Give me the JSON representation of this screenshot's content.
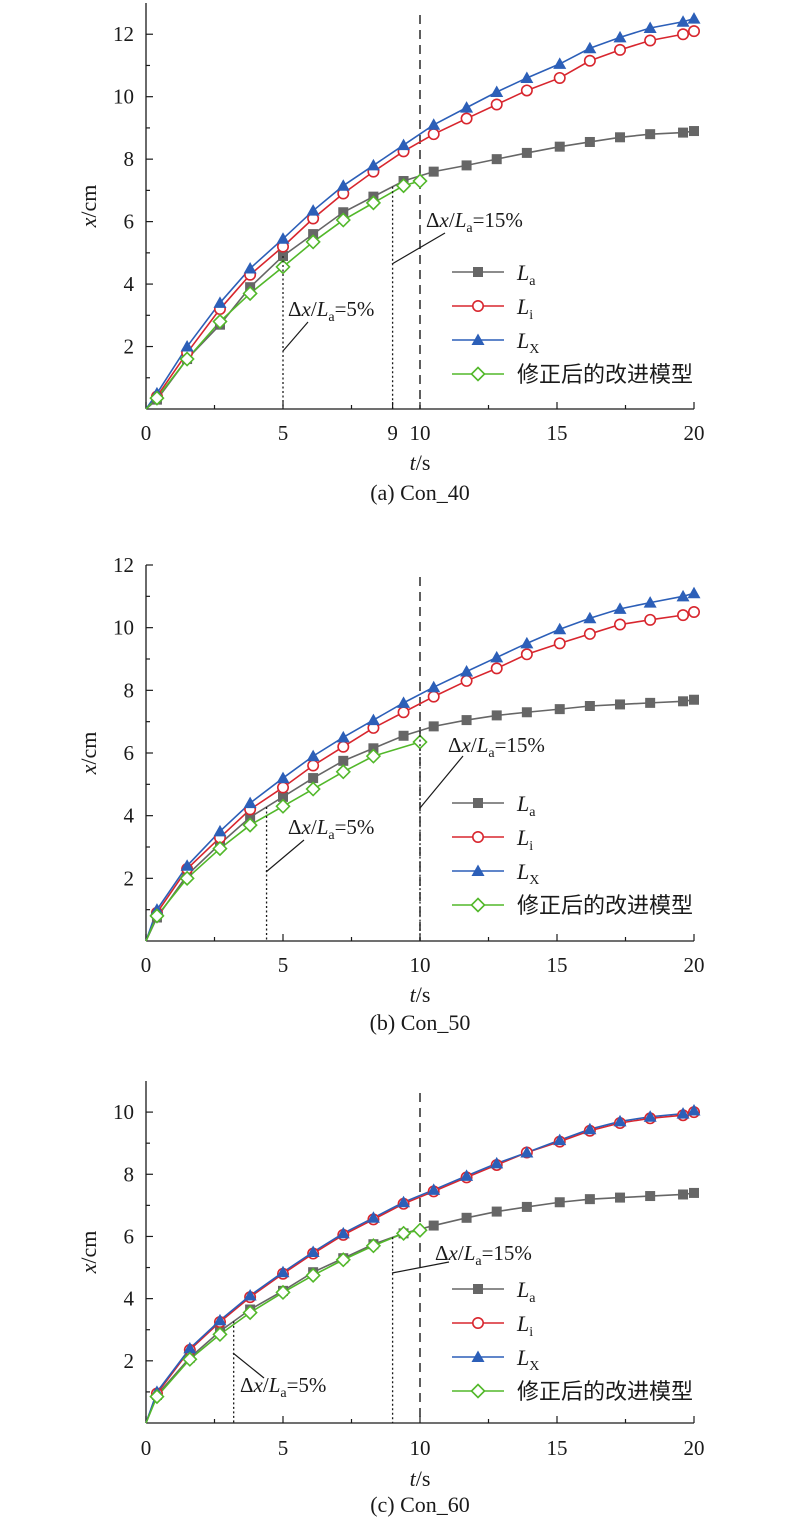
{
  "colors": {
    "La": "#666666",
    "Li": "#d8262e",
    "LX": "#2c5fb8",
    "model": "#52b82a",
    "axis": "#1a1a1a"
  },
  "legend_entries": [
    {
      "key": "La",
      "main": "L",
      "sub": "a",
      "marker": "square"
    },
    {
      "key": "Li",
      "main": "L",
      "sub": "i",
      "marker": "circle"
    },
    {
      "key": "LX",
      "main": "L",
      "sub": "X",
      "marker": "triangle"
    },
    {
      "key": "model",
      "main": "修正后的改进模型",
      "sub": "",
      "marker": "diamond"
    }
  ],
  "chart_data": [
    {
      "type": "line",
      "caption": "(a) Con_40",
      "xlabel_main": "t",
      "xlabel_unit": "/s",
      "ylabel_main": "x",
      "ylabel_unit": "/cm",
      "xlim": [
        0,
        20
      ],
      "ylim": [
        0,
        13
      ],
      "xticks": [
        0,
        5,
        9,
        10,
        15,
        20
      ],
      "yticks": [
        2,
        4,
        6,
        8,
        10,
        12
      ],
      "annotation_5pct": {
        "t": 5,
        "text_a": "Δ",
        "text_b": "x",
        "text_c": "/",
        "text_d": "L",
        "text_e": "a",
        "text_f": "=5%"
      },
      "annotation_15pct": {
        "t": 9,
        "text_a": "Δ",
        "text_b": "x",
        "text_c": "/",
        "text_d": "L",
        "text_e": "a",
        "text_f": "=15%"
      },
      "dashed_line_t": 10,
      "series": [
        {
          "key": "La",
          "x": [
            0,
            0.4,
            1.5,
            2.7,
            3.8,
            5,
            6.1,
            7.2,
            8.3,
            9.4,
            10.5,
            11.7,
            12.8,
            13.9,
            15.1,
            16.2,
            17.3,
            18.4,
            19.6,
            20
          ],
          "values": [
            0,
            0.3,
            1.6,
            2.7,
            3.9,
            4.9,
            5.6,
            6.3,
            6.8,
            7.3,
            7.6,
            7.8,
            8.0,
            8.2,
            8.4,
            8.55,
            8.7,
            8.8,
            8.85,
            8.9
          ]
        },
        {
          "key": "Li",
          "x": [
            0,
            0.4,
            1.5,
            2.7,
            3.8,
            5,
            6.1,
            7.2,
            8.3,
            9.4,
            10.5,
            11.7,
            12.8,
            13.9,
            15.1,
            16.2,
            17.3,
            18.4,
            19.6,
            20
          ],
          "values": [
            0,
            0.4,
            1.8,
            3.2,
            4.3,
            5.2,
            6.1,
            6.9,
            7.6,
            8.25,
            8.8,
            9.3,
            9.75,
            10.2,
            10.6,
            11.15,
            11.5,
            11.8,
            12.0,
            12.1
          ]
        },
        {
          "key": "LX",
          "x": [
            0,
            0.4,
            1.5,
            2.7,
            3.8,
            5,
            6.1,
            7.2,
            8.3,
            9.4,
            10.5,
            11.7,
            12.8,
            13.9,
            15.1,
            16.2,
            17.3,
            18.4,
            19.6,
            20
          ],
          "values": [
            0,
            0.5,
            2.0,
            3.4,
            4.5,
            5.45,
            6.35,
            7.15,
            7.8,
            8.45,
            9.1,
            9.65,
            10.15,
            10.6,
            11.05,
            11.55,
            11.9,
            12.2,
            12.4,
            12.5
          ]
        },
        {
          "key": "model",
          "x": [
            0,
            0.4,
            1.5,
            2.7,
            3.8,
            5,
            6.1,
            7.2,
            8.3,
            9.4,
            10
          ],
          "values": [
            0,
            0.35,
            1.6,
            2.8,
            3.7,
            4.55,
            5.35,
            6.05,
            6.6,
            7.15,
            7.3
          ]
        }
      ]
    },
    {
      "type": "line",
      "caption": "(b) Con_50",
      "xlabel_main": "t",
      "xlabel_unit": "/s",
      "ylabel_main": "x",
      "ylabel_unit": "/cm",
      "xlim": [
        0,
        20
      ],
      "ylim": [
        0,
        12
      ],
      "xticks": [
        0,
        5,
        10,
        15,
        20
      ],
      "yticks": [
        2,
        4,
        6,
        8,
        10,
        12
      ],
      "annotation_5pct": {
        "t": 4.4,
        "text_a": "Δ",
        "text_b": "x",
        "text_c": "/",
        "text_d": "L",
        "text_e": "a",
        "text_f": "=5%"
      },
      "annotation_15pct": {
        "t": 10,
        "text_a": "Δ",
        "text_b": "x",
        "text_c": "/",
        "text_d": "L",
        "text_e": "a",
        "text_f": "=15%"
      },
      "dashed_line_t": 10,
      "series": [
        {
          "key": "La",
          "x": [
            0,
            0.4,
            1.5,
            2.7,
            3.8,
            5,
            6.1,
            7.2,
            8.3,
            9.4,
            10.5,
            11.7,
            12.8,
            13.9,
            15.1,
            16.2,
            17.3,
            18.4,
            19.6,
            20
          ],
          "values": [
            0,
            0.75,
            2.1,
            3.1,
            3.95,
            4.6,
            5.2,
            5.75,
            6.15,
            6.55,
            6.85,
            7.05,
            7.2,
            7.3,
            7.4,
            7.5,
            7.55,
            7.6,
            7.65,
            7.7
          ]
        },
        {
          "key": "Li",
          "x": [
            0,
            0.4,
            1.5,
            2.7,
            3.8,
            5,
            6.1,
            7.2,
            8.3,
            9.4,
            10.5,
            11.7,
            12.8,
            13.9,
            15.1,
            16.2,
            17.3,
            18.4,
            19.6,
            20
          ],
          "values": [
            0,
            0.9,
            2.3,
            3.3,
            4.2,
            4.9,
            5.6,
            6.2,
            6.8,
            7.3,
            7.8,
            8.3,
            8.7,
            9.15,
            9.5,
            9.8,
            10.1,
            10.25,
            10.4,
            10.5
          ]
        },
        {
          "key": "LX",
          "x": [
            0,
            0.4,
            1.5,
            2.7,
            3.8,
            5,
            6.1,
            7.2,
            8.3,
            9.4,
            10.5,
            11.7,
            12.8,
            13.9,
            15.1,
            16.2,
            17.3,
            18.4,
            19.6,
            20
          ],
          "values": [
            0,
            1.0,
            2.4,
            3.5,
            4.4,
            5.2,
            5.9,
            6.5,
            7.05,
            7.6,
            8.1,
            8.6,
            9.05,
            9.5,
            9.95,
            10.3,
            10.6,
            10.8,
            11.0,
            11.1
          ]
        },
        {
          "key": "model",
          "x": [
            0,
            0.4,
            1.5,
            2.7,
            3.8,
            5,
            6.1,
            7.2,
            8.3,
            10
          ],
          "values": [
            0,
            0.8,
            2.0,
            2.95,
            3.7,
            4.3,
            4.85,
            5.4,
            5.9,
            6.35
          ]
        }
      ]
    },
    {
      "type": "line",
      "caption": "(c) Con_60",
      "xlabel_main": "t",
      "xlabel_unit": "/s",
      "ylabel_main": "x",
      "ylabel_unit": "/cm",
      "xlim": [
        0,
        20
      ],
      "ylim": [
        0,
        11
      ],
      "xticks": [
        0,
        5,
        10,
        15,
        20
      ],
      "yticks": [
        2,
        4,
        6,
        8,
        10
      ],
      "annotation_5pct": {
        "t": 3.2,
        "text_a": "Δ",
        "text_b": "x",
        "text_c": "/",
        "text_d": "L",
        "text_e": "a",
        "text_f": "=5%"
      },
      "annotation_15pct": {
        "t": 9,
        "text_a": "Δ",
        "text_b": "x",
        "text_c": "/",
        "text_d": "L",
        "text_e": "a",
        "text_f": "=15%"
      },
      "dashed_line_t": 10,
      "series": [
        {
          "key": "La",
          "x": [
            0,
            0.4,
            1.6,
            2.7,
            3.8,
            5,
            6.1,
            7.2,
            8.3,
            9.4,
            10.5,
            11.7,
            12.8,
            13.9,
            15.1,
            16.2,
            17.3,
            18.4,
            19.6,
            20
          ],
          "values": [
            0,
            0.9,
            2.1,
            2.95,
            3.65,
            4.25,
            4.85,
            5.3,
            5.75,
            6.1,
            6.35,
            6.6,
            6.8,
            6.95,
            7.1,
            7.2,
            7.25,
            7.3,
            7.35,
            7.4
          ]
        },
        {
          "key": "Li",
          "x": [
            0,
            0.4,
            1.6,
            2.7,
            3.8,
            5,
            6.1,
            7.2,
            8.3,
            9.4,
            10.5,
            11.7,
            12.8,
            13.9,
            15.1,
            16.2,
            17.3,
            18.4,
            19.6,
            20
          ],
          "values": [
            0,
            0.95,
            2.35,
            3.25,
            4.05,
            4.8,
            5.45,
            6.05,
            6.55,
            7.05,
            7.45,
            7.9,
            8.3,
            8.7,
            9.05,
            9.4,
            9.65,
            9.8,
            9.9,
            10.0
          ]
        },
        {
          "key": "LX",
          "x": [
            0,
            0.4,
            1.6,
            2.7,
            3.8,
            5,
            6.1,
            7.2,
            8.3,
            9.4,
            10.5,
            11.7,
            12.8,
            13.9,
            15.1,
            16.2,
            17.3,
            18.4,
            19.6,
            20
          ],
          "values": [
            0,
            1.0,
            2.4,
            3.3,
            4.1,
            4.85,
            5.5,
            6.1,
            6.6,
            7.1,
            7.5,
            7.95,
            8.35,
            8.7,
            9.1,
            9.45,
            9.7,
            9.85,
            9.95,
            10.05
          ]
        },
        {
          "key": "model",
          "x": [
            0,
            0.4,
            1.6,
            2.7,
            3.8,
            5,
            6.1,
            7.2,
            8.3,
            9.4,
            10
          ],
          "values": [
            0,
            0.85,
            2.05,
            2.85,
            3.55,
            4.2,
            4.75,
            5.25,
            5.7,
            6.1,
            6.2
          ]
        }
      ]
    }
  ]
}
